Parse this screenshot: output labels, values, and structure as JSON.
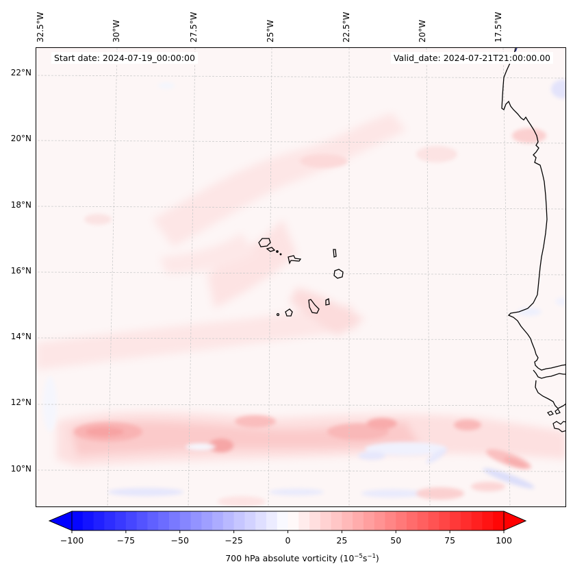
{
  "figure": {
    "variable": "700 hPa absolute vorticity",
    "start_date_label": "Start date: 2024-07-19_00:00:00",
    "valid_date_label": "Valid_date: 2024-07-21T21:00:00.00",
    "projection": "Lambert Conformal",
    "region": "Eastern Atlantic / Cape Verde / West Africa coast"
  },
  "axes": {
    "longitude_labels": [
      "32.5°W",
      "30°W",
      "27.5°W",
      "25°W",
      "22.5°W",
      "20°W",
      "17.5°W"
    ],
    "latitude_labels": [
      "22°N",
      "20°N",
      "18°N",
      "16°N",
      "14°N",
      "12°N",
      "10°N"
    ],
    "gridlines": "dashed light gray"
  },
  "colorbar": {
    "label_main": "700 hPa absolute vorticity (10",
    "label_exp1": "−5",
    "label_mid": "s",
    "label_exp2": "−1",
    "label_end": ")",
    "ticks": [
      "−100",
      "−75",
      "−50",
      "−25",
      "0",
      "25",
      "50",
      "75",
      "100"
    ],
    "tick_values": [
      -100,
      -75,
      -50,
      -25,
      0,
      25,
      50,
      75,
      100
    ],
    "min": -100,
    "max": 100,
    "step": 5,
    "extend": "both",
    "cmap": "bwr",
    "low_color": "#0000ff",
    "mid_color": "#ffffff",
    "high_color": "#ff0000"
  },
  "chart_data": {
    "type": "heatmap",
    "title": "",
    "annotations": [
      "Start date: 2024-07-19_00:00:00",
      "Valid_date: 2024-07-21T21:00:00.00"
    ],
    "xlabel": "",
    "ylabel": "",
    "x_ticks": [
      "32.5°W",
      "30°W",
      "27.5°W",
      "25°W",
      "22.5°W",
      "20°W",
      "17.5°W"
    ],
    "y_ticks": [
      "22°N",
      "20°N",
      "18°N",
      "16°N",
      "14°N",
      "12°N",
      "10°N"
    ],
    "x_range_deg": [
      -32.6,
      -15.5
    ],
    "y_range_deg": [
      8.9,
      22.8
    ],
    "colorbar_label": "700 hPa absolute vorticity (10^-5 s^-1)",
    "colorbar_range": [
      -100,
      100
    ],
    "features": [
      {
        "name": "ITCZ positive vorticity band",
        "lat": 11,
        "lon_range": [
          -31.5,
          -17
        ],
        "approx_value": 30
      },
      {
        "name": "Max near 31W",
        "lat": 11.1,
        "lon": -30.5,
        "approx_value": 35
      },
      {
        "name": "Max near 24.5W",
        "lat": 10.7,
        "lon": -24.5,
        "approx_value": 40
      },
      {
        "name": "Max near 22.5W",
        "lat": 11.2,
        "lon": -22.2,
        "approx_value": 30
      },
      {
        "name": "Max near 19.5W",
        "lat": 11.3,
        "lon": -19.5,
        "approx_value": 25
      },
      {
        "name": "Negative band",
        "lat": 9.2,
        "lon_range": [
          -30,
          -16
        ],
        "approx_value": -15
      },
      {
        "name": "Negative SE streak",
        "lat": 9.7,
        "lon": -17,
        "approx_value": -20
      },
      {
        "name": "Positive SE streak",
        "lat": 10.3,
        "lon": -17.3,
        "approx_value": 25
      },
      {
        "name": "Diagonal positive band through Cape Verde",
        "lat_range": [
          14,
          20
        ],
        "approx_value": 8
      },
      {
        "name": "Positive near 22.5W 19.5N",
        "lat": 19.4,
        "lon": -23.2,
        "approx_value": 15
      },
      {
        "name": "Positive near Cap Blanc",
        "lat": 21,
        "lon": -17.2,
        "approx_value": 18
      },
      {
        "name": "Negative near 22N 16W",
        "lat": 22,
        "lon": -16,
        "approx_value": -15
      },
      {
        "name": "Background",
        "approx_value": 3
      }
    ]
  }
}
